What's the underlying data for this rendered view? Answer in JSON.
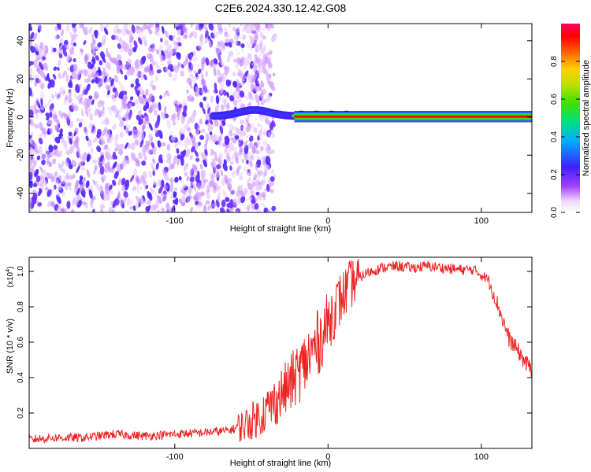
{
  "title": "C2E6.2024.330.12.42.G08",
  "chart_data": [
    {
      "type": "heatmap",
      "xlabel": "Height of straight line (km)",
      "ylabel": "Frequency (Hz)",
      "xlim": [
        -195,
        133
      ],
      "ylim": [
        -50,
        49
      ],
      "xticks": [
        -100,
        0,
        100
      ],
      "yticks": [
        -40,
        -20,
        0,
        20,
        40
      ],
      "colorbar": {
        "label": "Normalized spectral amplitude",
        "ticks": [
          0.0,
          0.2,
          0.4,
          0.6,
          0.8
        ],
        "range": [
          0,
          1
        ]
      },
      "features": [
        {
          "name": "noise",
          "x": [
            -195,
            -48
          ],
          "y": [
            -50,
            49
          ],
          "level": 0.15
        },
        {
          "name": "signal",
          "x": [
            -75,
            -22
          ],
          "y": [
            -3,
            6
          ],
          "level": 0.45
        },
        {
          "name": "signal",
          "x": [
            -22,
            133
          ],
          "y": [
            -1.5,
            2
          ],
          "level": 0.95
        }
      ]
    },
    {
      "type": "line",
      "xlabel": "Height of straight line (km)",
      "ylabel": "SNR (10 * v/v)",
      "scale_label": "(x10",
      "scale_exp": "4",
      "xlim": [
        -195,
        133
      ],
      "ylim": [
        0,
        1.08
      ],
      "xticks": [
        -100,
        0,
        100
      ],
      "yticks": [
        0.2,
        0.4,
        0.6,
        0.8,
        1.0
      ],
      "series": [
        {
          "color": "#ee2222",
          "x": [
            -195,
            -180,
            -160,
            -140,
            -120,
            -100,
            -80,
            -65,
            -55,
            -45,
            -35,
            -25,
            -15,
            -5,
            5,
            15,
            25,
            35,
            45,
            55,
            65,
            75,
            85,
            95,
            105,
            112,
            118,
            124,
            130,
            133
          ],
          "values": [
            0.05,
            0.06,
            0.06,
            0.08,
            0.07,
            0.08,
            0.09,
            0.1,
            0.13,
            0.18,
            0.26,
            0.36,
            0.48,
            0.62,
            0.8,
            0.93,
            0.99,
            1.02,
            1.03,
            1.02,
            1.03,
            1.02,
            1.01,
            1.01,
            0.95,
            0.78,
            0.62,
            0.55,
            0.47,
            0.45
          ]
        }
      ]
    }
  ]
}
